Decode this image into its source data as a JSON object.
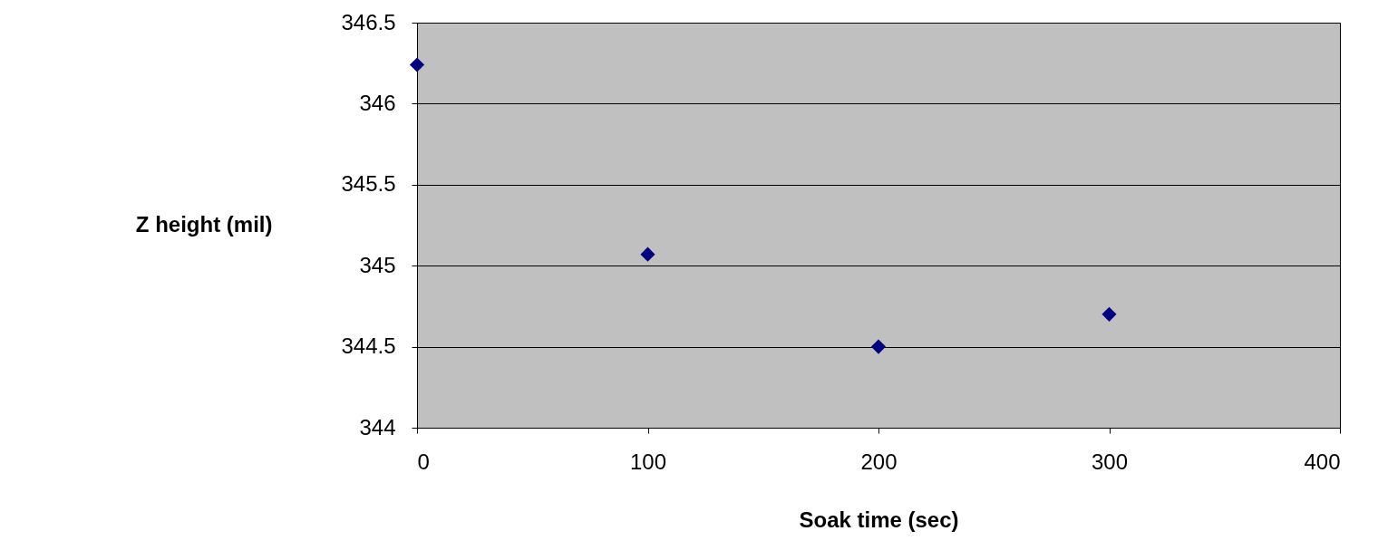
{
  "chart_data": {
    "type": "scatter",
    "xlabel": "Soak time (sec)",
    "ylabel": "Z height (mil)",
    "x": [
      0,
      100,
      200,
      300
    ],
    "series": [
      {
        "color": "#000080",
        "values": [
          346.24,
          345.07,
          344.5,
          344.7
        ]
      }
    ],
    "xlim": [
      0,
      400
    ],
    "xticks": [
      0,
      100,
      200,
      300,
      400
    ],
    "ylim": [
      344,
      346.5
    ],
    "yticks": [
      344,
      344.5,
      345,
      345.5,
      346,
      346.5
    ],
    "grid": "y",
    "marker": "diamond"
  }
}
